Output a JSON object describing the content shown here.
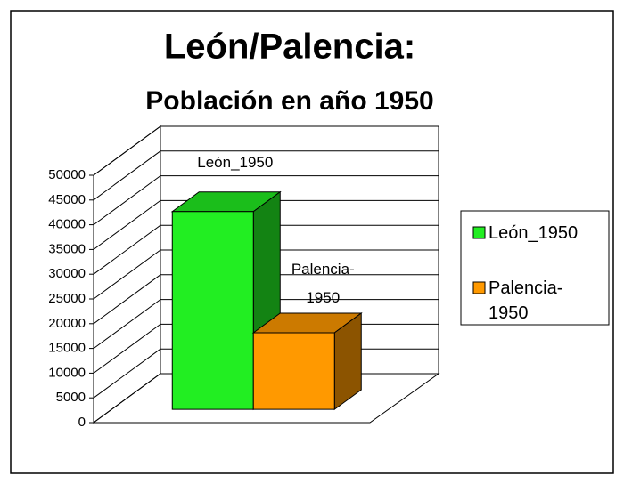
{
  "chart_data": {
    "type": "bar3d",
    "title": "León/Palencia:",
    "subtitle": "Población en año 1950",
    "categories": [
      null
    ],
    "series": [
      {
        "name": "León_1950",
        "color": "#22ee22",
        "values": [
          40000
        ]
      },
      {
        "name": "Palencia-1950",
        "color": "#ff9900",
        "values": [
          15500
        ]
      }
    ],
    "ylim": [
      0,
      50000
    ],
    "yticks": [
      0,
      5000,
      10000,
      15000,
      20000,
      25000,
      30000,
      35000,
      40000,
      45000,
      50000
    ],
    "grid": true,
    "legend": "right",
    "data_labels": true
  }
}
